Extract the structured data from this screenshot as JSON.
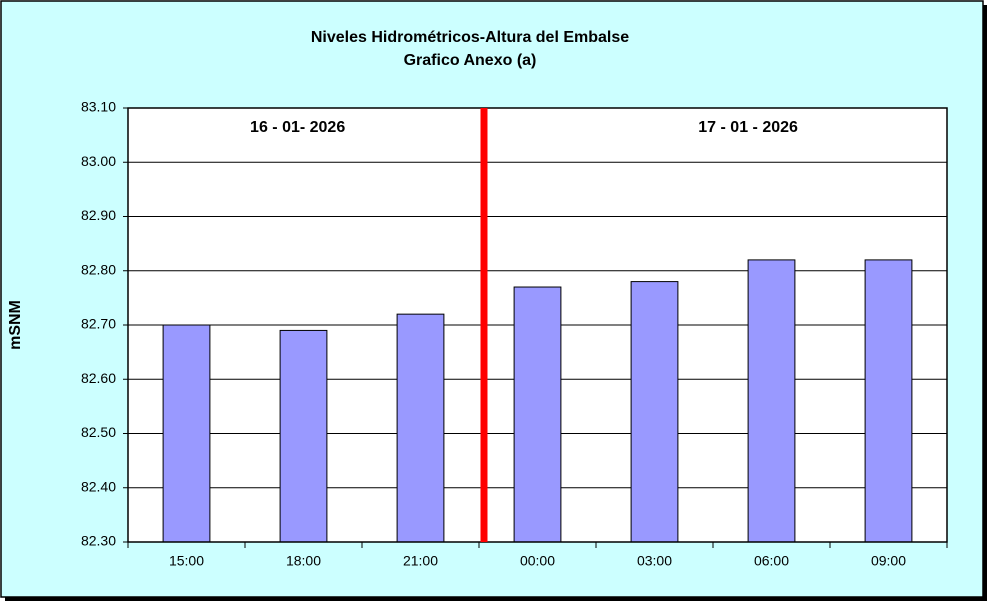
{
  "chart_data": {
    "type": "bar",
    "title": "Niveles Hidrométricos-Altura del Embalse",
    "subtitle": "Grafico Anexo (a)",
    "y_label": "mSNM",
    "annotations": [
      "16 - 01- 2026",
      "17 - 01 - 2026"
    ],
    "categories": [
      "15:00",
      "18:00",
      "21:00",
      "00:00",
      "03:00",
      "06:00",
      "09:00"
    ],
    "values": [
      82.7,
      82.69,
      82.72,
      82.77,
      82.78,
      82.82,
      82.82
    ],
    "color": "#9999ff",
    "ylim": [
      82.3,
      83.1
    ],
    "yticks": [
      {
        "value": 82.3,
        "label": "82.30"
      },
      {
        "value": 82.4,
        "label": "82.40"
      },
      {
        "value": 82.5,
        "label": "82.50"
      },
      {
        "value": 82.6,
        "label": "82.60"
      },
      {
        "value": 82.7,
        "label": "82.70"
      },
      {
        "value": 82.8,
        "label": "82.80"
      },
      {
        "value": 82.9,
        "label": "82.90"
      },
      {
        "value": 83.0,
        "label": "83.00"
      },
      {
        "value": 83.1,
        "label": "83.10"
      }
    ],
    "grid": true
  }
}
